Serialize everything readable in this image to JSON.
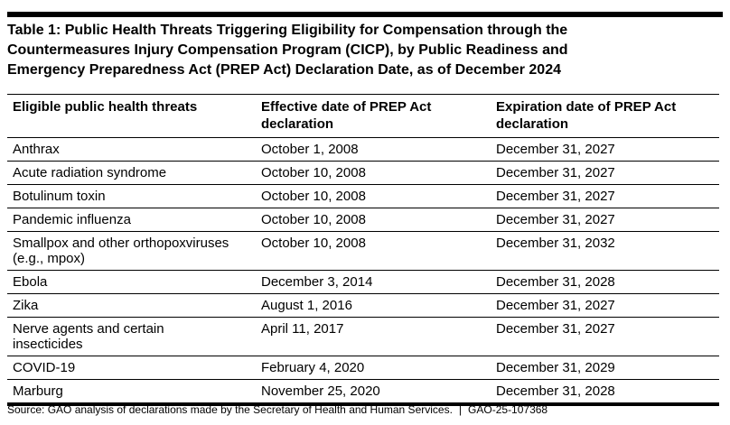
{
  "page": {
    "title_lines": [
      "Table 1: Public Health Threats Triggering Eligibility for Compensation through the",
      "Countermeasures Injury Compensation Program (CICP), by Public Readiness and",
      "Emergency Preparedness Act (PREP Act) Declaration Date, as of December 2024"
    ]
  },
  "table": {
    "columns": [
      "Eligible public health threats",
      "Effective date of PREP Act declaration",
      "Expiration date of PREP Act declaration"
    ],
    "rows": [
      {
        "threat": "Anthrax",
        "effective_date": "October 1, 2008",
        "expiration_date": "December 31, 2027"
      },
      {
        "threat": "Acute radiation syndrome",
        "effective_date": "October 10, 2008",
        "expiration_date": "December 31, 2027"
      },
      {
        "threat": "Botulinum toxin",
        "effective_date": "October 10, 2008",
        "expiration_date": "December 31, 2027"
      },
      {
        "threat": "Pandemic influenza",
        "effective_date": "October 10, 2008",
        "expiration_date": "December 31, 2027"
      },
      {
        "threat": "Smallpox and other orthopoxviruses (e.g., mpox)",
        "effective_date": "October 10, 2008",
        "expiration_date": "December 31, 2032"
      },
      {
        "threat": "Ebola",
        "effective_date": "December 3, 2014",
        "expiration_date": "December 31, 2028"
      },
      {
        "threat": "Zika",
        "effective_date": "August 1, 2016",
        "expiration_date": "December 31, 2027"
      },
      {
        "threat": "Nerve agents and certain insecticides",
        "effective_date": "April 11, 2017",
        "expiration_date": "December 31, 2027"
      },
      {
        "threat": "COVID-19",
        "effective_date": "February 4, 2020",
        "expiration_date": "December 31, 2029"
      },
      {
        "threat": "Marburg",
        "effective_date": "November 25, 2020",
        "expiration_date": "December 31, 2028"
      }
    ]
  },
  "footer": {
    "source": "Source: GAO analysis of declarations made by the Secretary of Health and Human Services.",
    "separator": "|",
    "report_number": "GAO-25-107368"
  },
  "colors": {
    "text": "#000000",
    "rule": "#000000",
    "background": "#ffffff"
  }
}
